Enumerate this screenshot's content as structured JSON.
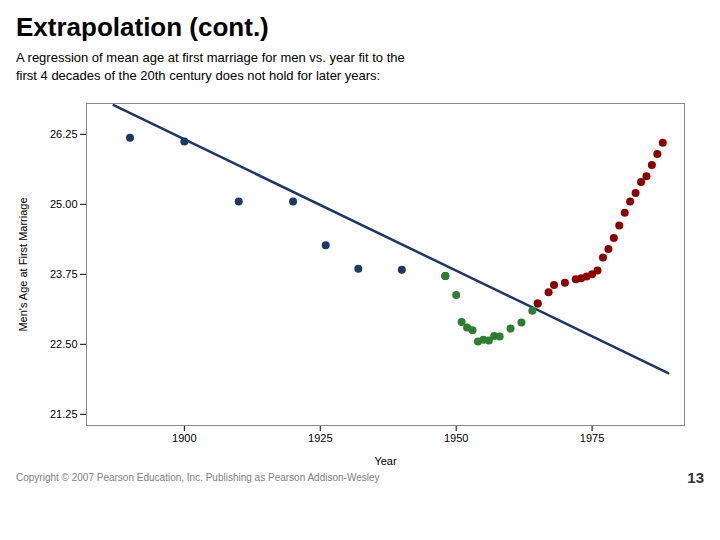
{
  "chart_data": {
    "type": "scatter",
    "title": "Extrapolation (cont.)",
    "subtitle": [
      "A regression of mean age at first marriage for men vs. year fit to the",
      "first 4 decades of the 20th century does not hold for later years:"
    ],
    "xlabel": "Year",
    "ylabel": "Men's Age at First Marriage",
    "annotations": [
      "Copyright © 2007  Pearson Education, Inc.  Publishing as Pearson Addison-Wesley",
      "13"
    ],
    "series": [
      {
        "type": "line",
        "color": "#1F3864",
        "x": [
          1887,
          1989
        ],
        "values": [
          26.7697,
          21.9859
        ]
      },
      {
        "type": "scatter",
        "color": "#1F3864",
        "x": [
          1890,
          1900,
          1910,
          1920,
          1926,
          1932,
          1940,
          1948
        ],
        "values": [
          26.19,
          26.12,
          25.05,
          25.05,
          24.27,
          23.85,
          23.83,
          23.72
        ]
      },
      {
        "type": "scatter",
        "color": "#2E7D32",
        "x": [
          1948,
          1950,
          1951,
          1952,
          1953,
          1954,
          1955,
          1956,
          1957,
          1958,
          1960,
          1962,
          1964,
          1965
        ],
        "values": [
          23.72,
          23.38,
          22.9,
          22.8,
          22.75,
          22.55,
          22.58,
          22.57,
          22.65,
          22.64,
          22.78,
          22.89,
          23.1,
          23.23
        ]
      },
      {
        "type": "scatter",
        "color": "#8B0000",
        "x": [
          1965,
          1967,
          1968,
          1970,
          1972,
          1973,
          1974,
          1975,
          1976,
          1977,
          1978,
          1979,
          1980,
          1981,
          1982,
          1983,
          1984,
          1985,
          1986,
          1987,
          1988
        ],
        "values": [
          23.23,
          23.43,
          23.56,
          23.6,
          23.66,
          23.68,
          23.71,
          23.75,
          23.82,
          24.05,
          24.2,
          24.4,
          24.62,
          24.85,
          25.05,
          25.2,
          25.4,
          25.5,
          25.7,
          25.9,
          26.1
        ]
      }
    ],
    "xlim": [
      1882,
      1992
    ],
    "xticks": [
      1900,
      1925,
      1950,
      1975
    ],
    "ylim": [
      21.05,
      26.8
    ],
    "yticks": [
      {
        "value": 21.25,
        "label": "21.25"
      },
      {
        "value": 22.5,
        "label": "22.50"
      },
      {
        "value": 23.75,
        "label": "23.75"
      },
      {
        "value": 25.0,
        "label": "25.00"
      },
      {
        "value": 26.25,
        "label": "26.25"
      }
    ]
  }
}
